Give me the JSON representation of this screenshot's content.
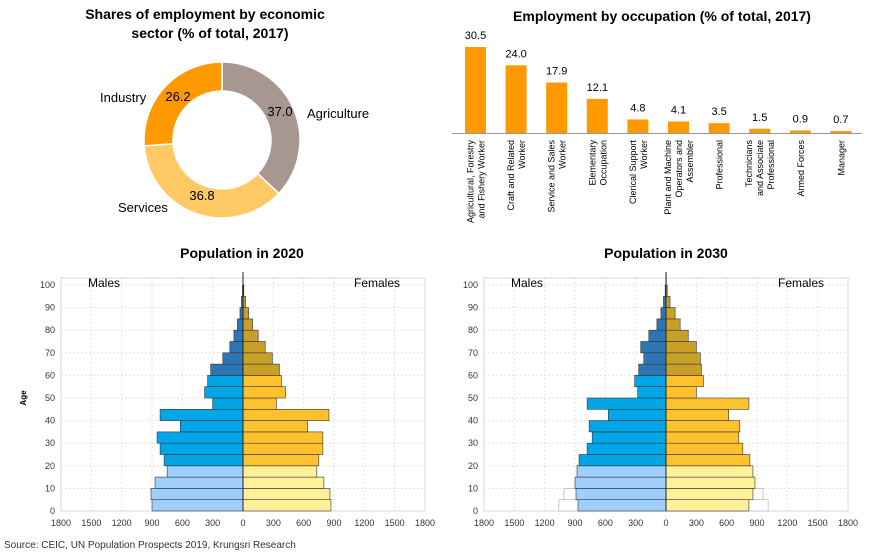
{
  "source": "Source: CEIC, UN Population Prospects 2019, Krungsri Research",
  "chart_data": [
    {
      "type": "pie",
      "title_lines": [
        "Shares of employment by economic",
        "sector (% of total, 2017)"
      ],
      "slices": [
        {
          "name": "Agriculture",
          "value": 37.0,
          "label": "37.0",
          "color": "#a89690"
        },
        {
          "name": "Services",
          "value": 36.8,
          "label": "36.8",
          "color": "#ffc966"
        },
        {
          "name": "Industry",
          "value": 26.2,
          "label": "26.2",
          "color": "#ff9900"
        }
      ]
    },
    {
      "type": "bar",
      "title": "Employment by occupation (% of total, 2017)",
      "color": "#ff9900",
      "categories": [
        [
          "Agricultural, Forestry",
          "and Fishery Worker"
        ],
        [
          "Craft and Related",
          "Worker"
        ],
        [
          "Service and Sales",
          "Worker"
        ],
        [
          "Elementary",
          "Occupation"
        ],
        [
          "Clerical Support",
          "Worker"
        ],
        [
          "Plant and Machine",
          "Operators and",
          "Assembler"
        ],
        [
          "Professional"
        ],
        [
          "Technicians",
          "and Associate",
          "Professional"
        ],
        [
          "Armed Forces"
        ],
        [
          "Manager"
        ]
      ],
      "values": [
        30.5,
        24.0,
        17.9,
        12.1,
        4.8,
        4.1,
        3.5,
        1.5,
        0.9,
        0.7
      ],
      "value_labels": [
        "30.5",
        "24.0",
        "17.9",
        "12.1",
        "4.8",
        "4.1",
        "3.5",
        "1.5",
        "0.9",
        "0.7"
      ]
    },
    {
      "type": "bar",
      "subtype": "population-pyramid",
      "title": "Population in 2020",
      "ylabel": "Age",
      "males_label": "Males",
      "females_label": "Females",
      "xlim": [
        -1800,
        1800
      ],
      "x_ticks": [
        "1800",
        "1500",
        "1200",
        "900",
        "600",
        "300",
        "0",
        "300",
        "600",
        "900",
        "1200",
        "1500",
        "1800"
      ],
      "age_ticks": [
        "0",
        "10",
        "20",
        "30",
        "40",
        "50",
        "60",
        "70",
        "80",
        "90",
        "100"
      ],
      "age_groups_start": [
        0,
        5,
        10,
        15,
        20,
        25,
        30,
        35,
        40,
        45,
        50,
        55,
        60,
        65,
        70,
        75,
        80,
        85,
        90,
        95,
        100
      ],
      "males": [
        900,
        910,
        870,
        750,
        780,
        820,
        850,
        620,
        820,
        300,
        380,
        350,
        320,
        200,
        130,
        90,
        55,
        30,
        15,
        5,
        1
      ],
      "females": [
        870,
        860,
        800,
        730,
        750,
        790,
        790,
        640,
        850,
        330,
        420,
        380,
        360,
        290,
        220,
        150,
        95,
        55,
        25,
        8,
        2
      ],
      "colors": {
        "male": [
          "#9fcfff",
          "#00a6e8",
          "#2e75b6"
        ],
        "female": [
          "#fff09a",
          "#ffc22e",
          "#c8a028"
        ]
      }
    },
    {
      "type": "bar",
      "subtype": "population-pyramid",
      "title": "Population in 2030",
      "males_label": "Males",
      "females_label": "Females",
      "xlim": [
        -1800,
        1800
      ],
      "x_ticks": [
        "1800",
        "1500",
        "1200",
        "900",
        "600",
        "300",
        "0",
        "300",
        "600",
        "900",
        "1200",
        "1500",
        "1800"
      ],
      "age_ticks": [
        "0",
        "10",
        "20",
        "30",
        "40",
        "50",
        "60",
        "70",
        "80",
        "90",
        "100"
      ],
      "age_groups_start": [
        0,
        5,
        10,
        15,
        20,
        25,
        30,
        35,
        40,
        45,
        50,
        55,
        60,
        65,
        70,
        75,
        80,
        85,
        90,
        95,
        100
      ],
      "males": [
        870,
        890,
        900,
        880,
        860,
        780,
        730,
        760,
        570,
        780,
        280,
        310,
        270,
        220,
        250,
        170,
        90,
        50,
        25,
        8,
        2
      ],
      "females": [
        820,
        860,
        880,
        860,
        830,
        760,
        720,
        730,
        620,
        820,
        300,
        370,
        350,
        340,
        300,
        220,
        140,
        90,
        40,
        12,
        3
      ],
      "ghost_males": [
        1060,
        1010,
        870,
        780,
        780
      ],
      "ghost_females": [
        1010,
        960,
        860,
        760,
        760
      ],
      "colors": {
        "male": [
          "#9fcfff",
          "#00a6e8",
          "#2e75b6"
        ],
        "female": [
          "#fff09a",
          "#ffc22e",
          "#c8a028"
        ]
      }
    }
  ]
}
